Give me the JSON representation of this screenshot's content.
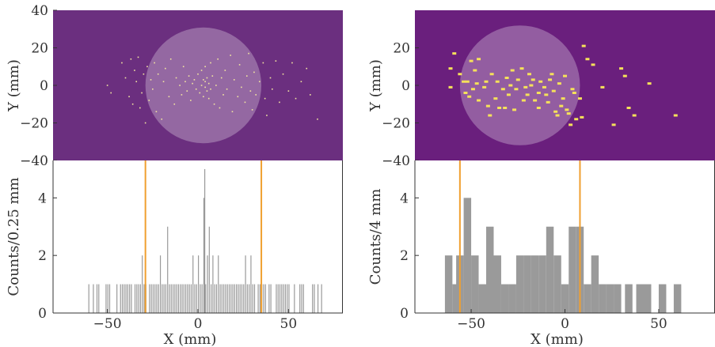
{
  "chart_data": [
    {
      "panel": "left",
      "image": {
        "type": "heatmap",
        "ylabel": "Y (mm)",
        "xlim": [
          -80,
          80
        ],
        "ylim": [
          -40,
          40
        ],
        "yticks": [
          40,
          20,
          0,
          -20,
          -40
        ],
        "yticklabels": [
          "40",
          "20",
          "0",
          "−20",
          "−40"
        ],
        "background_color": "#6b2f7f",
        "hit_color": "#f2e6a0",
        "circle": {
          "center": [
            3,
            0
          ],
          "radius": 32
        },
        "hits": [
          [
            -50,
            0
          ],
          [
            -48,
            -4
          ],
          [
            -42,
            12
          ],
          [
            -40,
            4
          ],
          [
            -38,
            -6
          ],
          [
            -37,
            14
          ],
          [
            -36,
            -10
          ],
          [
            -35,
            8
          ],
          [
            -34,
            2
          ],
          [
            -33,
            15
          ],
          [
            -32,
            -12
          ],
          [
            -31,
            -4
          ],
          [
            -30,
            6
          ],
          [
            -29,
            -20
          ],
          [
            -28,
            10
          ],
          [
            -27,
            -8
          ],
          [
            -26,
            3
          ],
          [
            -25,
            -2
          ],
          [
            -24,
            12
          ],
          [
            -23,
            -14
          ],
          [
            -22,
            6
          ],
          [
            -20,
            -18
          ],
          [
            -19,
            2
          ],
          [
            -18,
            9
          ],
          [
            -16,
            -6
          ],
          [
            -15,
            14
          ],
          [
            -13,
            -10
          ],
          [
            -12,
            4
          ],
          [
            -10,
            0
          ],
          [
            -9,
            -5
          ],
          [
            -8,
            10
          ],
          [
            -7,
            2
          ],
          [
            -6,
            -3
          ],
          [
            -5,
            5
          ],
          [
            -4,
            -8
          ],
          [
            -3,
            1
          ],
          [
            -2,
            3
          ],
          [
            -1,
            -2
          ],
          [
            0,
            6
          ],
          [
            1,
            -4
          ],
          [
            2,
            0
          ],
          [
            2,
            8
          ],
          [
            3,
            -6
          ],
          [
            3,
            3
          ],
          [
            4,
            -1
          ],
          [
            4,
            2
          ],
          [
            4,
            10
          ],
          [
            5,
            -3
          ],
          [
            5,
            4
          ],
          [
            6,
            -7
          ],
          [
            6,
            1
          ],
          [
            7,
            12
          ],
          [
            7,
            -2
          ],
          [
            8,
            5
          ],
          [
            9,
            -10
          ],
          [
            10,
            0
          ],
          [
            11,
            14
          ],
          [
            12,
            -12
          ],
          [
            13,
            4
          ],
          [
            14,
            -5
          ],
          [
            15,
            8
          ],
          [
            16,
            -2
          ],
          [
            18,
            16
          ],
          [
            19,
            -14
          ],
          [
            20,
            3
          ],
          [
            22,
            -6
          ],
          [
            23,
            11
          ],
          [
            24,
            -1
          ],
          [
            26,
            -9
          ],
          [
            27,
            5
          ],
          [
            28,
            17
          ],
          [
            29,
            -3
          ],
          [
            30,
            -13
          ],
          [
            31,
            7
          ],
          [
            32,
            -5
          ],
          [
            34,
            2
          ],
          [
            36,
            12
          ],
          [
            37,
            -7
          ],
          [
            38,
            -16
          ],
          [
            40,
            4
          ],
          [
            41,
            -2
          ],
          [
            43,
            13
          ],
          [
            45,
            -9
          ],
          [
            47,
            6
          ],
          [
            50,
            -3
          ],
          [
            52,
            12
          ],
          [
            54,
            -7
          ],
          [
            57,
            2
          ],
          [
            60,
            9
          ],
          [
            62,
            -5
          ],
          [
            66,
            -18
          ]
        ]
      },
      "histogram": {
        "type": "bar",
        "xlabel": "X (mm)",
        "ylabel": "Counts/0.25 mm",
        "xlim": [
          -80,
          80
        ],
        "ylim": [
          0,
          5.3
        ],
        "xticks": [
          -50,
          0,
          50
        ],
        "xticklabels": [
          "−50",
          "0",
          "50"
        ],
        "yticks": [
          0,
          2,
          4
        ],
        "yticklabels": [
          "0",
          "2",
          "4"
        ],
        "bin_width": 0.25,
        "bar_color": "#9a9a9a",
        "bins": [
          [
            -60.5,
            1
          ],
          [
            -58,
            1
          ],
          [
            -56,
            1
          ],
          [
            -55,
            1
          ],
          [
            -51,
            1
          ],
          [
            -50,
            1
          ],
          [
            -49,
            1
          ],
          [
            -45,
            1
          ],
          [
            -43,
            1
          ],
          [
            -42,
            1
          ],
          [
            -41,
            1
          ],
          [
            -40,
            1
          ],
          [
            -39,
            1
          ],
          [
            -38,
            1
          ],
          [
            -37,
            1
          ],
          [
            -35,
            1
          ],
          [
            -34,
            1
          ],
          [
            -33,
            1
          ],
          [
            -32,
            1
          ],
          [
            -31,
            2
          ],
          [
            -30,
            1
          ],
          [
            -29,
            1
          ],
          [
            -27,
            1
          ],
          [
            -26,
            1
          ],
          [
            -25,
            1
          ],
          [
            -24,
            1
          ],
          [
            -23,
            1
          ],
          [
            -22,
            1
          ],
          [
            -21,
            2
          ],
          [
            -20,
            1
          ],
          [
            -19,
            1
          ],
          [
            -18,
            1
          ],
          [
            -17,
            3
          ],
          [
            -16,
            1
          ],
          [
            -15,
            1
          ],
          [
            -14,
            1
          ],
          [
            -13,
            1
          ],
          [
            -12,
            1
          ],
          [
            -11,
            1
          ],
          [
            -10,
            1
          ],
          [
            -9,
            1
          ],
          [
            -8,
            1
          ],
          [
            -7,
            1
          ],
          [
            -6,
            1
          ],
          [
            -5,
            1
          ],
          [
            -4,
            1
          ],
          [
            -3,
            2
          ],
          [
            -2,
            1
          ],
          [
            -1,
            1
          ],
          [
            0,
            2
          ],
          [
            1,
            1
          ],
          [
            2,
            1
          ],
          [
            3,
            4
          ],
          [
            3.5,
            5
          ],
          [
            4,
            1
          ],
          [
            5,
            2
          ],
          [
            6,
            3
          ],
          [
            7,
            1
          ],
          [
            8,
            2
          ],
          [
            9,
            1
          ],
          [
            10,
            1
          ],
          [
            11,
            2
          ],
          [
            12,
            1
          ],
          [
            13,
            1
          ],
          [
            14,
            1
          ],
          [
            15,
            1
          ],
          [
            16,
            1
          ],
          [
            17,
            1
          ],
          [
            18,
            1
          ],
          [
            19,
            1
          ],
          [
            20,
            1
          ],
          [
            21,
            1
          ],
          [
            22,
            1
          ],
          [
            23,
            1
          ],
          [
            24,
            1
          ],
          [
            25,
            1
          ],
          [
            26,
            2
          ],
          [
            27,
            1
          ],
          [
            28,
            1
          ],
          [
            29,
            2
          ],
          [
            30,
            1
          ],
          [
            31,
            1
          ],
          [
            33,
            1
          ],
          [
            34,
            1
          ],
          [
            35,
            1
          ],
          [
            36,
            1
          ],
          [
            37,
            1
          ],
          [
            39,
            1
          ],
          [
            40,
            1
          ],
          [
            43,
            1
          ],
          [
            44,
            1
          ],
          [
            45,
            1
          ],
          [
            46,
            1
          ],
          [
            47,
            1
          ],
          [
            48,
            1
          ],
          [
            49,
            1
          ],
          [
            50,
            1
          ],
          [
            53,
            1
          ],
          [
            56,
            1
          ],
          [
            57,
            1
          ],
          [
            58,
            1
          ],
          [
            63,
            1
          ],
          [
            64,
            1
          ],
          [
            66,
            1
          ],
          [
            68,
            1
          ]
        ]
      },
      "marker_lines": {
        "x": [
          -29,
          35
        ],
        "color": "#f0a030"
      }
    },
    {
      "panel": "right",
      "image": {
        "type": "heatmap",
        "ylabel": "Y (mm)",
        "xlim": [
          -80,
          80
        ],
        "ylim": [
          -40,
          40
        ],
        "yticks": [
          20,
          0,
          -20,
          -40
        ],
        "yticklabels": [
          "20",
          "0",
          "−20",
          "−40"
        ],
        "background_color": "#6a1f7d",
        "hit_color": "#f5e15a",
        "circle": {
          "center": [
            -24,
            0
          ],
          "radius": 32
        },
        "hits": [
          [
            -61,
            9
          ],
          [
            -61,
            -1
          ],
          [
            -59,
            17
          ],
          [
            -56,
            6
          ],
          [
            -54,
            2
          ],
          [
            -53,
            -4
          ],
          [
            -52,
            2
          ],
          [
            -51,
            -6
          ],
          [
            -50,
            13
          ],
          [
            -49,
            -2
          ],
          [
            -48,
            8
          ],
          [
            -47,
            1
          ],
          [
            -46,
            -8
          ],
          [
            -46,
            14
          ],
          [
            -43,
            -1
          ],
          [
            -42,
            2
          ],
          [
            -41,
            -11
          ],
          [
            -40,
            -16
          ],
          [
            -39,
            6
          ],
          [
            -37,
            -7
          ],
          [
            -36,
            2
          ],
          [
            -35,
            -12
          ],
          [
            -33,
            -2
          ],
          [
            -32,
            -12
          ],
          [
            -31,
            4
          ],
          [
            -30,
            -5
          ],
          [
            -29,
            0
          ],
          [
            -28,
            8
          ],
          [
            -27,
            -13
          ],
          [
            -26,
            -2
          ],
          [
            -25,
            3
          ],
          [
            -23,
            9
          ],
          [
            -22,
            -8
          ],
          [
            -21,
            -1
          ],
          [
            -20,
            -5
          ],
          [
            -19,
            6
          ],
          [
            -18,
            0
          ],
          [
            -17,
            3
          ],
          [
            -16,
            -8
          ],
          [
            -14,
            -4
          ],
          [
            -14,
            -12
          ],
          [
            -13,
            2
          ],
          [
            -11,
            -1
          ],
          [
            -10,
            -5
          ],
          [
            -9,
            -9
          ],
          [
            -8,
            3
          ],
          [
            -7,
            6
          ],
          [
            -6,
            -3
          ],
          [
            -5,
            -14
          ],
          [
            -4,
            -16
          ],
          [
            -3,
            1
          ],
          [
            -2,
            -11
          ],
          [
            -1,
            -7
          ],
          [
            0,
            5
          ],
          [
            1,
            -13
          ],
          [
            2,
            -15
          ],
          [
            3,
            -21
          ],
          [
            4,
            -2
          ],
          [
            5,
            -4
          ],
          [
            6,
            -18
          ],
          [
            8,
            -7
          ],
          [
            9,
            -17
          ],
          [
            10,
            21
          ],
          [
            12,
            14
          ],
          [
            15,
            11
          ],
          [
            20,
            -1
          ],
          [
            26,
            -21
          ],
          [
            30,
            9
          ],
          [
            32,
            5
          ],
          [
            34,
            -12
          ],
          [
            37,
            -16
          ],
          [
            45,
            1
          ],
          [
            59,
            -16
          ]
        ]
      },
      "histogram": {
        "type": "bar",
        "xlabel": "X (mm)",
        "ylabel": "Counts/4 mm",
        "xlim": [
          -80,
          80
        ],
        "ylim": [
          0,
          5.3
        ],
        "xticks": [
          -50,
          0,
          50
        ],
        "xticklabels": [
          "−50",
          "0",
          "50"
        ],
        "yticks": [
          0,
          2,
          4
        ],
        "yticklabels": [
          "0",
          "2",
          "4"
        ],
        "bin_width": 4,
        "bar_color": "#9a9a9a",
        "bins": [
          [
            -64,
            2
          ],
          [
            -60,
            1
          ],
          [
            -58,
            2
          ],
          [
            -54,
            4
          ],
          [
            -50,
            2
          ],
          [
            -46,
            1
          ],
          [
            -42,
            3
          ],
          [
            -38,
            2
          ],
          [
            -34,
            1
          ],
          [
            -30,
            1
          ],
          [
            -26,
            2
          ],
          [
            -22,
            2
          ],
          [
            -18,
            2
          ],
          [
            -14,
            2
          ],
          [
            -10,
            3
          ],
          [
            -6,
            2
          ],
          [
            -2,
            1
          ],
          [
            2,
            3
          ],
          [
            6,
            3
          ],
          [
            10,
            1
          ],
          [
            14,
            2
          ],
          [
            18,
            1
          ],
          [
            22,
            1
          ],
          [
            26,
            1
          ],
          [
            32,
            1
          ],
          [
            38,
            1
          ],
          [
            42,
            1
          ],
          [
            50,
            1
          ],
          [
            58,
            1
          ]
        ]
      },
      "marker_lines": {
        "x": [
          -56,
          8
        ],
        "color": "#f0a030"
      }
    }
  ]
}
